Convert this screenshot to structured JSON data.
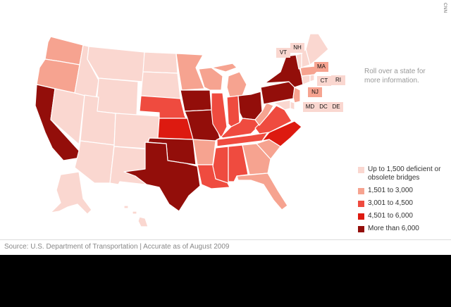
{
  "brand": "CNN",
  "instructions": "Roll over a state for more information.",
  "colors": {
    "tier1": "#fad7d0",
    "tier2": "#f6a390",
    "tier3": "#ef4b3f",
    "tier4": "#dd1a10",
    "tier5": "#930e0a"
  },
  "legend": [
    {
      "label": "Up to 1,500 deficient or obsolete bridges",
      "color": "#fad7d0"
    },
    {
      "label": "1,501 to 3,000",
      "color": "#f6a390"
    },
    {
      "label": "3,001 to 4,500",
      "color": "#ef4b3f"
    },
    {
      "label": "4,501 to 6,000",
      "color": "#dd1a10"
    },
    {
      "label": "More than 6,000",
      "color": "#930e0a"
    }
  ],
  "small_states": [
    {
      "code": "VT",
      "color": "#fad7d0"
    },
    {
      "code": "NH",
      "color": "#fad7d0"
    },
    {
      "code": "MA",
      "color": "#f6a390"
    },
    {
      "code": "CT",
      "color": "#fad7d0"
    },
    {
      "code": "RI",
      "color": "#fad7d0"
    },
    {
      "code": "NJ",
      "color": "#f6a390"
    },
    {
      "code": "MD",
      "color": "#fad7d0"
    },
    {
      "code": "DC",
      "color": "#fad7d0"
    },
    {
      "code": "DE",
      "color": "#fad7d0"
    }
  ],
  "source": "Source: U.S. Department of Transportation  |  Accurate as of August 2009"
}
